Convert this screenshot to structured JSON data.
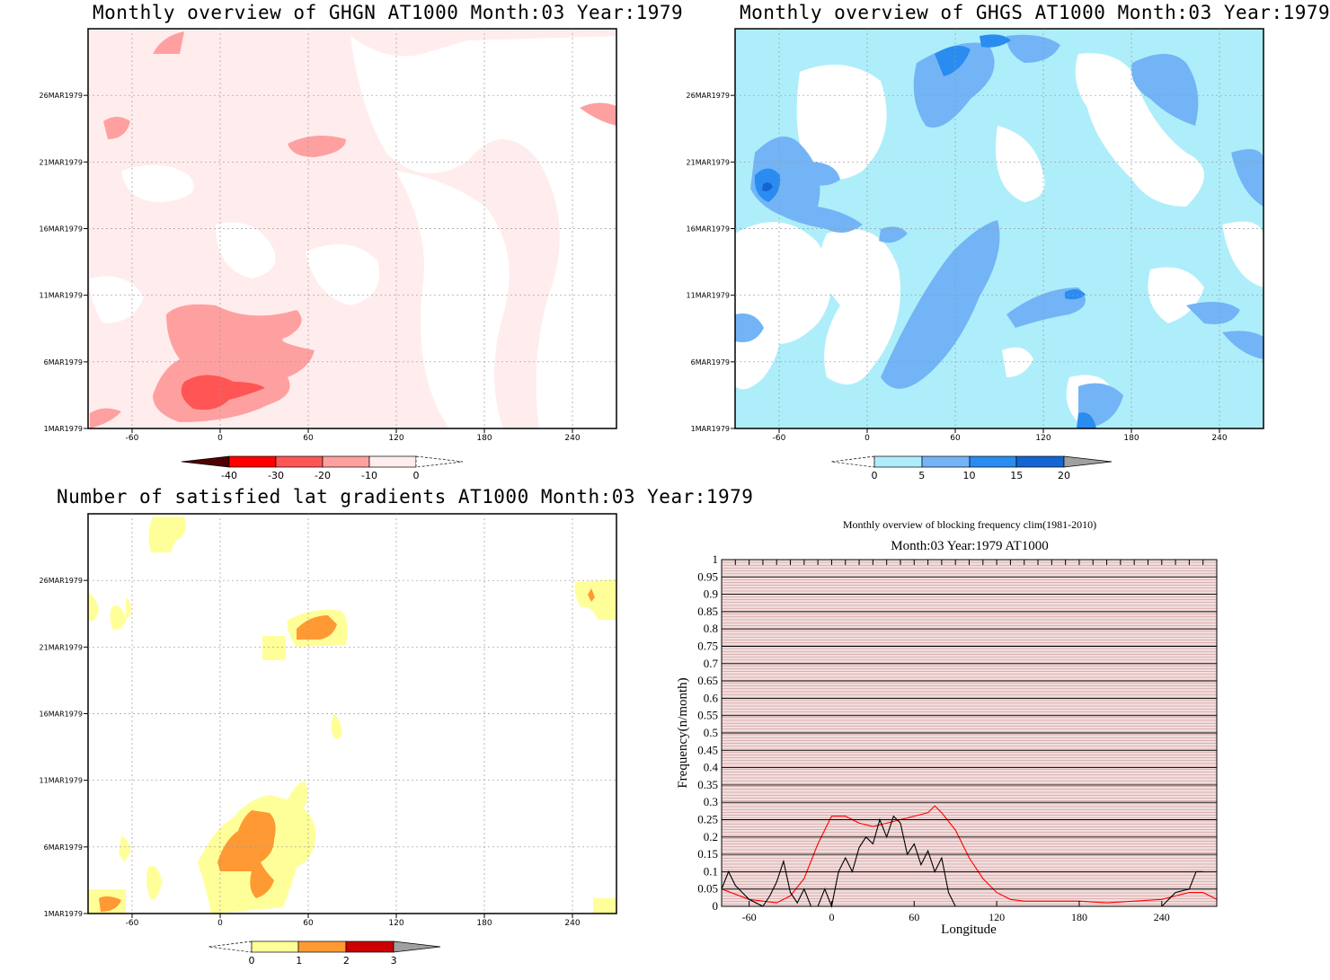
{
  "colors": {
    "red_scale": [
      "#500000",
      "#ff0000",
      "#ff5555",
      "#ffa0a0",
      "#ffeded"
    ],
    "blue_scale": [
      "#aeeefa",
      "#72b4f6",
      "#2a8cf0",
      "#1464d2",
      "#a0a0a0"
    ],
    "yellow_scale": [
      "#ffff99",
      "#ff9933",
      "#cc0000",
      "#a0a0a0"
    ],
    "clim_line": "#ff0000",
    "obs_line": "#000000",
    "bg_shade": "#f2dede"
  },
  "panels": {
    "ghgn": {
      "title": "Monthly overview of GHGN AT1000 Month:03 Year:1979",
      "y_ticks": [
        "1MAR1979",
        "6MAR1979",
        "11MAR1979",
        "16MAR1979",
        "21MAR1979",
        "26MAR1979"
      ],
      "x_ticks": [
        "-60",
        "0",
        "60",
        "120",
        "180",
        "240"
      ],
      "colorbar_labels": [
        "-40",
        "-30",
        "-20",
        "-10",
        "0"
      ]
    },
    "ghgs": {
      "title": "Monthly overview of GHGS AT1000 Month:03 Year:1979",
      "y_ticks": [
        "1MAR1979",
        "6MAR1979",
        "11MAR1979",
        "16MAR1979",
        "21MAR1979",
        "26MAR1979"
      ],
      "x_ticks": [
        "-60",
        "0",
        "60",
        "120",
        "180",
        "240"
      ],
      "colorbar_labels": [
        "0",
        "5",
        "10",
        "15",
        "20"
      ]
    },
    "lat": {
      "title": "Number of satisfied lat gradients AT1000 Month:03 Year:1979",
      "y_ticks": [
        "1MAR1979",
        "6MAR1979",
        "11MAR1979",
        "16MAR1979",
        "21MAR1979",
        "26MAR1979"
      ],
      "x_ticks": [
        "-60",
        "0",
        "60",
        "120",
        "180",
        "240"
      ],
      "colorbar_labels": [
        "0",
        "1",
        "2",
        "3"
      ]
    },
    "freq": {
      "title": "Monthly overview of blocking frequency clim(1981-2010)",
      "subtitle": "Month:03 Year:1979  AT1000",
      "xlabel": "Longitude",
      "ylabel": "Frequency(n/month)",
      "x_ticks": [
        "-60",
        "0",
        "60",
        "120",
        "180",
        "240"
      ],
      "y_ticks": [
        "0",
        "0.05",
        "0.1",
        "0.15",
        "0.2",
        "0.25",
        "0.3",
        "0.35",
        "0.4",
        "0.45",
        "0.5",
        "0.55",
        "0.6",
        "0.65",
        "0.7",
        "0.75",
        "0.8",
        "0.85",
        "0.9",
        "0.95",
        "1"
      ]
    }
  },
  "chart_data": [
    {
      "type": "heatmap",
      "title": "Monthly overview of GHGN AT1000 Month:03 Year:1979",
      "x_range": [
        -90,
        270
      ],
      "y_range": [
        "1MAR1979",
        "31MAR1979"
      ],
      "levels": [
        -40,
        -30,
        -20,
        -10,
        0
      ],
      "notes": "Mostly -10..0 shading; stronger negative (-30..-20) core near lon 0, 2-6 MAR"
    },
    {
      "type": "heatmap",
      "title": "Monthly overview of GHGS AT1000 Month:03 Year:1979",
      "x_range": [
        -90,
        270
      ],
      "y_range": [
        "1MAR1979",
        "31MAR1979"
      ],
      "levels": [
        0,
        5,
        10,
        15,
        20
      ]
    },
    {
      "type": "heatmap",
      "title": "Number of satisfied lat gradients AT1000 Month:03 Year:1979",
      "x_range": [
        -90,
        270
      ],
      "y_range": [
        "1MAR1979",
        "31MAR1979"
      ],
      "levels": [
        0,
        1,
        2,
        3
      ]
    },
    {
      "type": "line",
      "title": "Monthly overview of blocking frequency clim(1981-2010)",
      "subtitle": "Month:03 Year:1979  AT1000",
      "xlabel": "Longitude",
      "ylabel": "Frequency(n/month)",
      "xlim": [
        -80,
        280
      ],
      "ylim": [
        0,
        1
      ],
      "series": [
        {
          "color": "#ff0000",
          "x": [
            -80,
            -60,
            -40,
            -30,
            -20,
            -10,
            0,
            10,
            20,
            30,
            40,
            50,
            60,
            70,
            75,
            80,
            90,
            100,
            110,
            120,
            130,
            140,
            150,
            160,
            180,
            200,
            220,
            240,
            250,
            260,
            270,
            280
          ],
          "y": [
            0.05,
            0.02,
            0.01,
            0.03,
            0.08,
            0.18,
            0.26,
            0.26,
            0.24,
            0.23,
            0.24,
            0.25,
            0.26,
            0.27,
            0.29,
            0.27,
            0.22,
            0.14,
            0.08,
            0.04,
            0.02,
            0.015,
            0.015,
            0.015,
            0.015,
            0.01,
            0.015,
            0.02,
            0.03,
            0.04,
            0.04,
            0.02
          ]
        },
        {
          "color": "#000000",
          "x": [
            -80,
            -75,
            -70,
            -65,
            -60,
            -50,
            -45,
            -40,
            -35,
            -30,
            -25,
            -20,
            -15,
            -10,
            -5,
            0,
            5,
            10,
            15,
            20,
            25,
            30,
            35,
            40,
            45,
            50,
            55,
            60,
            65,
            70,
            75,
            80,
            85,
            90,
            95,
            100,
            240,
            250,
            260,
            265,
            270
          ],
          "y": [
            0.05,
            0.1,
            0.06,
            0.04,
            0.02,
            0.0,
            0.03,
            0.07,
            0.13,
            0.04,
            0.01,
            0.05,
            0.0,
            0.0,
            0.05,
            0.0,
            0.1,
            0.14,
            0.1,
            0.17,
            0.2,
            0.18,
            0.25,
            0.2,
            0.26,
            0.24,
            0.15,
            0.18,
            0.12,
            0.16,
            0.1,
            0.14,
            0.04,
            0.0,
            0.0,
            0.0,
            0.0,
            0.04,
            0.05,
            0.1,
            0.1
          ]
        }
      ]
    }
  ]
}
